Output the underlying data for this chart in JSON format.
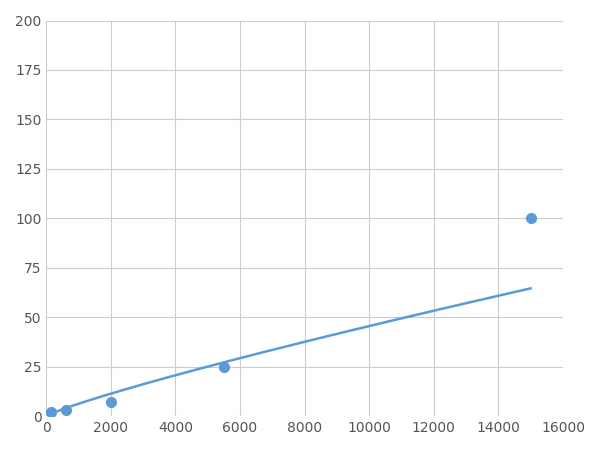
{
  "x": [
    156,
    625,
    2000,
    5500,
    15000
  ],
  "y": [
    2,
    3,
    7,
    25,
    100
  ],
  "line_color": "#5b9bd5",
  "marker_color": "#5b9bd5",
  "marker_size": 7,
  "marker_style": "o",
  "linewidth": 1.8,
  "xlim": [
    0,
    16000
  ],
  "ylim": [
    0,
    200
  ],
  "xticks": [
    0,
    2000,
    4000,
    6000,
    8000,
    10000,
    12000,
    14000,
    16000
  ],
  "yticks": [
    0,
    25,
    50,
    75,
    100,
    125,
    150,
    175,
    200
  ],
  "grid_color": "#cccccc",
  "background_color": "#ffffff",
  "figsize": [
    6.0,
    4.5
  ],
  "dpi": 100
}
